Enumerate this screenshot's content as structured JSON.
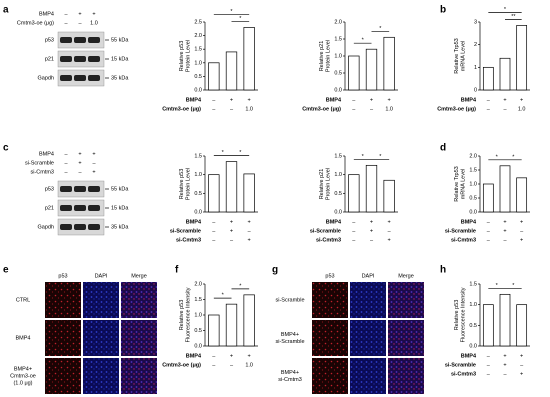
{
  "panel_labels": [
    "a",
    "b",
    "c",
    "d",
    "e",
    "f",
    "g",
    "h"
  ],
  "blots": [
    {
      "conditions": [
        {
          "name": "BMP4",
          "values": [
            "–",
            "+",
            "+"
          ]
        },
        {
          "name": "Cmtm3-oe (μg)",
          "values": [
            "–",
            "–",
            "1.0"
          ]
        }
      ],
      "bands": [
        {
          "name": "p53",
          "size": "55 kDa"
        },
        {
          "name": "p21",
          "size": "15 kDa"
        },
        {
          "name": "Gapdh",
          "size": "35 kDa"
        }
      ]
    },
    {
      "conditions": [
        {
          "name": "BMP4",
          "values": [
            "–",
            "+",
            "+"
          ]
        },
        {
          "name": "si-Scramble",
          "values": [
            "–",
            "+",
            "–"
          ]
        },
        {
          "name": "si-Cmtm3",
          "values": [
            "–",
            "–",
            "+"
          ]
        }
      ],
      "bands": [
        {
          "name": "p53",
          "size": "55 kDa"
        },
        {
          "name": "p21",
          "size": "15 kDa"
        },
        {
          "name": "Gapdh",
          "size": "35 kDa"
        }
      ]
    }
  ],
  "image_panels": [
    {
      "columns": [
        "p53",
        "DAPI",
        "Merge"
      ],
      "rows": [
        [
          "CTRL"
        ],
        [
          "BMP4"
        ],
        [
          "BMP4+",
          "Cmtm3-oe",
          "(1.0 μg)"
        ]
      ]
    },
    {
      "columns": [
        "p53",
        "DAPI",
        "Merge"
      ],
      "rows": [
        [
          "si-Scramble"
        ],
        [
          "BMP4+",
          "si-Scramble"
        ],
        [
          "BMP4+",
          "si-Cmtm3"
        ]
      ]
    }
  ],
  "chart_data": [
    {
      "type": "bar",
      "ylabel": [
        "Relative p53",
        "Protein Level"
      ],
      "values": [
        1.0,
        1.4,
        2.3
      ],
      "ylim": [
        0,
        2.5
      ],
      "yticks": [
        {
          "value": 0,
          "label": "0.0"
        },
        {
          "value": 0.5,
          "label": "0.5"
        },
        {
          "value": 1,
          "label": "1.0"
        },
        {
          "value": 1.5,
          "label": "1.5"
        },
        {
          "value": 2,
          "label": "2.0"
        },
        {
          "value": 2.5,
          "label": "2.5"
        }
      ],
      "conditions": [
        {
          "name": "BMP4",
          "values": [
            "–",
            "+",
            "+"
          ]
        },
        {
          "name": "Cmtm3-oe (μg)",
          "values": [
            "–",
            "–",
            "1.0"
          ]
        }
      ],
      "significance": [
        {
          "between": [
            0,
            2
          ],
          "label": "*"
        },
        {
          "between": [
            1,
            2
          ],
          "label": "*"
        }
      ]
    },
    {
      "type": "bar",
      "ylabel": [
        "Relative p21",
        "Protein Level"
      ],
      "values": [
        1.0,
        1.2,
        1.55
      ],
      "ylim": [
        0,
        2
      ],
      "yticks": [
        {
          "value": 0,
          "label": "0.0"
        },
        {
          "value": 0.5,
          "label": "0.5"
        },
        {
          "value": 1,
          "label": "1.0"
        },
        {
          "value": 1.5,
          "label": "1.5"
        },
        {
          "value": 2,
          "label": "2.0"
        }
      ],
      "conditions": [
        {
          "name": "BMP4",
          "values": [
            "–",
            "+",
            "+"
          ]
        },
        {
          "name": "Cmtm3-oe (μg)",
          "values": [
            "–",
            "–",
            "1.0"
          ]
        }
      ],
      "significance": [
        {
          "between": [
            0,
            1
          ],
          "label": "*"
        },
        {
          "between": [
            1,
            2
          ],
          "label": "*"
        }
      ]
    },
    {
      "type": "bar",
      "ylabel": [
        "Relative Trp53",
        "mRNA Level"
      ],
      "values": [
        1.0,
        1.4,
        2.85
      ],
      "ylim": [
        0,
        3
      ],
      "yticks": [
        0,
        1,
        2,
        3
      ],
      "conditions": [
        {
          "name": "BMP4",
          "values": [
            "–",
            "+",
            "+"
          ]
        },
        {
          "name": "Cmtm3-oe (μg)",
          "values": [
            "–",
            "–",
            "1.0"
          ]
        }
      ],
      "significance": [
        {
          "between": [
            0,
            2
          ],
          "label": "*"
        },
        {
          "between": [
            1,
            2
          ],
          "label": "**"
        }
      ]
    },
    {
      "type": "bar",
      "ylabel": [
        "Relative p53",
        "Protein Level"
      ],
      "values": [
        1.0,
        1.35,
        1.02
      ],
      "ylim": [
        0,
        1.5
      ],
      "yticks": [
        {
          "value": 0,
          "label": "0.0"
        },
        {
          "value": 0.5,
          "label": "0.5"
        },
        {
          "value": 1,
          "label": "1.0"
        },
        {
          "value": 1.5,
          "label": "1.5"
        }
      ],
      "conditions": [
        {
          "name": "BMP4",
          "values": [
            "–",
            "+",
            "+"
          ]
        },
        {
          "name": "si-Scramble",
          "values": [
            "–",
            "+",
            "–"
          ]
        },
        {
          "name": "si-Cmtm3",
          "values": [
            "–",
            "–",
            "+"
          ]
        }
      ],
      "significance": [
        {
          "between": [
            0,
            1
          ],
          "label": "*"
        },
        {
          "between": [
            1,
            2
          ],
          "label": "*"
        }
      ]
    },
    {
      "type": "bar",
      "ylabel": [
        "Relative p21",
        "Protein Level"
      ],
      "values": [
        1.0,
        1.25,
        0.85
      ],
      "ylim": [
        0,
        1.5
      ],
      "yticks": [
        {
          "value": 0,
          "label": "0.0"
        },
        {
          "value": 0.5,
          "label": "0.5"
        },
        {
          "value": 1,
          "label": "1.0"
        },
        {
          "value": 1.5,
          "label": "1.5"
        }
      ],
      "conditions": [
        {
          "name": "BMP4",
          "values": [
            "–",
            "+",
            "+"
          ]
        },
        {
          "name": "si-Scramble",
          "values": [
            "–",
            "+",
            "–"
          ]
        },
        {
          "name": "si-Cmtm3",
          "values": [
            "–",
            "–",
            "+"
          ]
        }
      ],
      "significance": [
        {
          "between": [
            0,
            1
          ],
          "label": "*"
        },
        {
          "between": [
            1,
            2
          ],
          "label": "*"
        }
      ]
    },
    {
      "type": "bar",
      "ylabel": [
        "Relative Trp53",
        "mRNA Level"
      ],
      "values": [
        1.0,
        1.65,
        1.22
      ],
      "ylim": [
        0,
        2
      ],
      "yticks": [
        {
          "value": 0,
          "label": "0.0"
        },
        {
          "value": 0.5,
          "label": "0.5"
        },
        {
          "value": 1,
          "label": "1.0"
        },
        {
          "value": 1.5,
          "label": "1.5"
        },
        {
          "value": 2,
          "label": "2.0"
        }
      ],
      "conditions": [
        {
          "name": "BMP4",
          "values": [
            "–",
            "+",
            "+"
          ]
        },
        {
          "name": "si-Scramble",
          "values": [
            "–",
            "+",
            "–"
          ]
        },
        {
          "name": "si-Cmtm3",
          "values": [
            "–",
            "–",
            "+"
          ]
        }
      ],
      "significance": [
        {
          "between": [
            0,
            1
          ],
          "label": "*"
        },
        {
          "between": [
            1,
            2
          ],
          "label": "*"
        }
      ]
    },
    {
      "type": "bar",
      "ylabel": [
        "Relative p53",
        "Fluorescence Intensity"
      ],
      "values": [
        1.0,
        1.35,
        1.65
      ],
      "ylim": [
        0,
        2
      ],
      "yticks": [
        {
          "value": 0,
          "label": "0.0"
        },
        {
          "value": 0.5,
          "label": "0.5"
        },
        {
          "value": 1,
          "label": "1.0"
        },
        {
          "value": 1.5,
          "label": "1.5"
        },
        {
          "value": 2,
          "label": "2.0"
        }
      ],
      "conditions": [
        {
          "name": "BMP4",
          "values": [
            "–",
            "+",
            "+"
          ]
        },
        {
          "name": "Cmtm3-oe (μg)",
          "values": [
            "–",
            "–",
            "1.0"
          ]
        }
      ],
      "significance": [
        {
          "between": [
            0,
            1
          ],
          "label": "*"
        },
        {
          "between": [
            1,
            2
          ],
          "label": "*"
        }
      ]
    },
    {
      "type": "bar",
      "ylabel": [
        "Relative p53",
        "Fluorescence Intensity"
      ],
      "values": [
        1.0,
        1.25,
        1.0
      ],
      "ylim": [
        0,
        1.5
      ],
      "yticks": [
        {
          "value": 0,
          "label": "0.0"
        },
        {
          "value": 0.5,
          "label": "0.5"
        },
        {
          "value": 1,
          "label": "1.0"
        },
        {
          "value": 1.5,
          "label": "1.5"
        }
      ],
      "conditions": [
        {
          "name": "BMP4",
          "values": [
            "–",
            "+",
            "+"
          ]
        },
        {
          "name": "si-Scramble",
          "values": [
            "–",
            "+",
            "–"
          ]
        },
        {
          "name": "si-Cmtm3",
          "values": [
            "–",
            "–",
            "+"
          ]
        }
      ],
      "significance": [
        {
          "between": [
            0,
            1
          ],
          "label": "*"
        },
        {
          "between": [
            1,
            2
          ],
          "label": "*"
        }
      ]
    }
  ]
}
